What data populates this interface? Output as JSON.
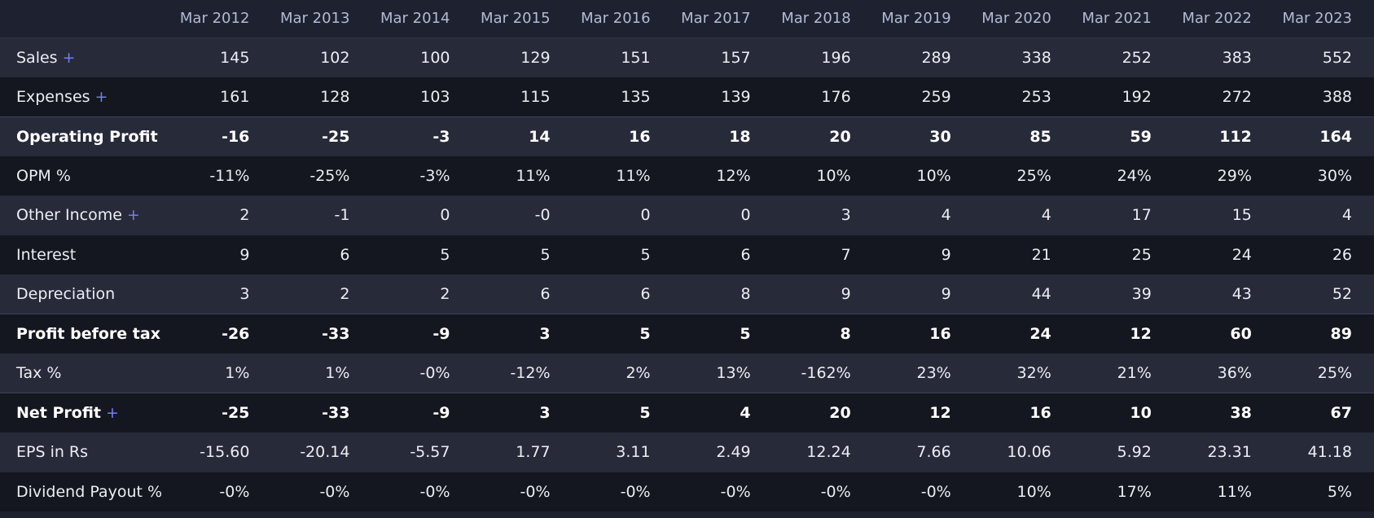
{
  "table": {
    "corner_label": "",
    "years": [
      "Mar 2012",
      "Mar 2013",
      "Mar 2014",
      "Mar 2015",
      "Mar 2016",
      "Mar 2017",
      "Mar 2018",
      "Mar 2019",
      "Mar 2020",
      "Mar 2021",
      "Mar 2022",
      "Mar 2023"
    ],
    "rows": [
      {
        "key": "sales",
        "label": "Sales",
        "expand": "+",
        "bold": false,
        "sep": false,
        "values": [
          "145",
          "102",
          "100",
          "129",
          "151",
          "157",
          "196",
          "289",
          "338",
          "252",
          "383",
          "552"
        ]
      },
      {
        "key": "expenses",
        "label": "Expenses",
        "expand": "+",
        "bold": false,
        "sep": false,
        "values": [
          "161",
          "128",
          "103",
          "115",
          "135",
          "139",
          "176",
          "259",
          "253",
          "192",
          "272",
          "388"
        ]
      },
      {
        "key": "operating-profit",
        "label": "Operating Profit",
        "expand": "",
        "bold": true,
        "sep": true,
        "values": [
          "-16",
          "-25",
          "-3",
          "14",
          "16",
          "18",
          "20",
          "30",
          "85",
          "59",
          "112",
          "164"
        ]
      },
      {
        "key": "opm",
        "label": "OPM %",
        "expand": "",
        "bold": false,
        "sep": false,
        "values": [
          "-11%",
          "-25%",
          "-3%",
          "11%",
          "11%",
          "12%",
          "10%",
          "10%",
          "25%",
          "24%",
          "29%",
          "30%"
        ]
      },
      {
        "key": "other-income",
        "label": "Other Income",
        "expand": "+",
        "bold": false,
        "sep": false,
        "values": [
          "2",
          "-1",
          "0",
          "-0",
          "0",
          "0",
          "3",
          "4",
          "4",
          "17",
          "15",
          "4"
        ]
      },
      {
        "key": "interest",
        "label": "Interest",
        "expand": "",
        "bold": false,
        "sep": false,
        "values": [
          "9",
          "6",
          "5",
          "5",
          "5",
          "6",
          "7",
          "9",
          "21",
          "25",
          "24",
          "26"
        ]
      },
      {
        "key": "depreciation",
        "label": "Depreciation",
        "expand": "",
        "bold": false,
        "sep": false,
        "values": [
          "3",
          "2",
          "2",
          "6",
          "6",
          "8",
          "9",
          "9",
          "44",
          "39",
          "43",
          "52"
        ]
      },
      {
        "key": "profit-before-tax",
        "label": "Profit before tax",
        "expand": "",
        "bold": true,
        "sep": true,
        "values": [
          "-26",
          "-33",
          "-9",
          "3",
          "5",
          "5",
          "8",
          "16",
          "24",
          "12",
          "60",
          "89"
        ]
      },
      {
        "key": "tax",
        "label": "Tax %",
        "expand": "",
        "bold": false,
        "sep": false,
        "values": [
          "1%",
          "1%",
          "-0%",
          "-12%",
          "2%",
          "13%",
          "-162%",
          "23%",
          "32%",
          "21%",
          "36%",
          "25%"
        ]
      },
      {
        "key": "net-profit",
        "label": "Net Profit",
        "expand": "+",
        "bold": true,
        "sep": true,
        "values": [
          "-25",
          "-33",
          "-9",
          "3",
          "5",
          "4",
          "20",
          "12",
          "16",
          "10",
          "38",
          "67"
        ]
      },
      {
        "key": "eps",
        "label": "EPS in Rs",
        "expand": "",
        "bold": false,
        "sep": false,
        "values": [
          "-15.60",
          "-20.14",
          "-5.57",
          "1.77",
          "3.11",
          "2.49",
          "12.24",
          "7.66",
          "10.06",
          "5.92",
          "23.31",
          "41.18"
        ]
      },
      {
        "key": "dividend-payout",
        "label": "Dividend Payout %",
        "expand": "",
        "bold": false,
        "sep": false,
        "values": [
          "-0%",
          "-0%",
          "-0%",
          "-0%",
          "-0%",
          "-0%",
          "-0%",
          "-0%",
          "10%",
          "17%",
          "11%",
          "5%"
        ]
      }
    ]
  }
}
